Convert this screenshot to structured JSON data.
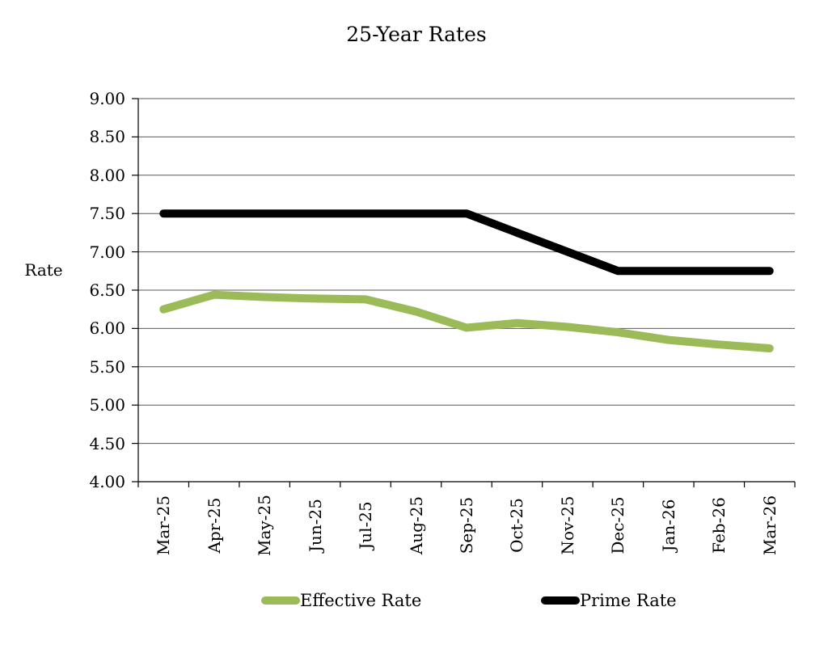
{
  "chart_data": {
    "type": "line",
    "title": "25-Year Rates",
    "xlabel": "",
    "ylabel": "Rate",
    "categories": [
      "Mar-25",
      "Apr-25",
      "May-25",
      "Jun-25",
      "Jul-25",
      "Aug-25",
      "Sep-25",
      "Oct-25",
      "Nov-25",
      "Dec-25",
      "Jan-26",
      "Feb-26",
      "Mar-26"
    ],
    "series": [
      {
        "name": "Effective Rate",
        "color": "#9BBB59",
        "values": [
          6.25,
          6.44,
          6.41,
          6.39,
          6.38,
          6.22,
          6.01,
          6.07,
          6.02,
          5.95,
          5.85,
          5.79,
          5.74
        ]
      },
      {
        "name": "Prime Rate",
        "color": "#000000",
        "values": [
          7.5,
          7.5,
          7.5,
          7.5,
          7.5,
          7.5,
          7.5,
          7.25,
          7.0,
          6.75,
          6.75,
          6.75,
          6.75
        ]
      }
    ],
    "ylim": [
      4.0,
      9.0
    ],
    "ytick_step": 0.5,
    "ytick_labels": [
      "9.00",
      "8.50",
      "8.00",
      "7.50",
      "7.00",
      "6.50",
      "6.00",
      "5.50",
      "5.00",
      "4.50",
      "4.00"
    ],
    "grid": true,
    "gridline_color": "#595959",
    "axis_color": "#000000",
    "legend_position": "bottom"
  }
}
